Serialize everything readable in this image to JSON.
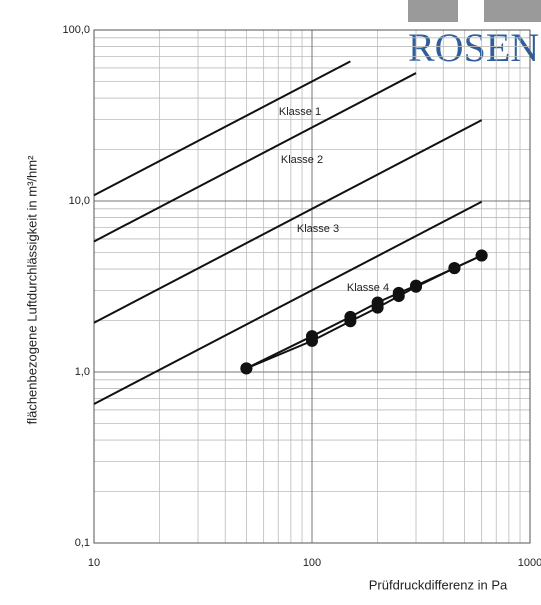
{
  "logo": "ROSEN",
  "chart_data": {
    "type": "line",
    "xlabel": "Prüfdruckdifferenz in Pa",
    "ylabel": "flächenbezogene Luftdurchlässigkeit in m³/hm²",
    "xscale": "log",
    "yscale": "log",
    "grid": true,
    "xlim": [
      10,
      1000
    ],
    "ylim": [
      0.1,
      100
    ],
    "xticks": [
      10,
      100,
      1000
    ],
    "yticks": [
      {
        "value": 0.1,
        "label": "0,1"
      },
      {
        "value": 1,
        "label": "1,0"
      },
      {
        "value": 10,
        "label": "10,0"
      },
      {
        "value": 100,
        "label": "100,0"
      }
    ],
    "series": [
      {
        "name": "Klasse 1",
        "color": "#111111",
        "marker": false,
        "x": [
          10,
          150
        ],
        "values": [
          10.8,
          65.5
        ]
      },
      {
        "name": "Klasse 2",
        "color": "#111111",
        "marker": false,
        "x": [
          10,
          300
        ],
        "values": [
          5.8,
          56
        ]
      },
      {
        "name": "Klasse 3",
        "color": "#111111",
        "marker": false,
        "x": [
          10,
          600
        ],
        "values": [
          1.94,
          29.7
        ]
      },
      {
        "name": "Klasse 4",
        "color": "#111111",
        "marker": false,
        "x": [
          10,
          600
        ],
        "values": [
          0.65,
          9.9
        ]
      },
      {
        "color": "#111111",
        "marker": true,
        "x": [
          50,
          100,
          150,
          200,
          250,
          300,
          450,
          600
        ],
        "values": [
          1.05,
          1.62,
          2.1,
          2.55,
          2.9,
          3.2,
          4.05,
          4.8
        ]
      },
      {
        "color": "#111111",
        "marker": true,
        "x": [
          50,
          100,
          150,
          200,
          250,
          300,
          450,
          600
        ],
        "values": [
          1.05,
          1.52,
          1.98,
          2.38,
          2.78,
          3.15,
          4.05,
          4.8
        ]
      }
    ]
  }
}
